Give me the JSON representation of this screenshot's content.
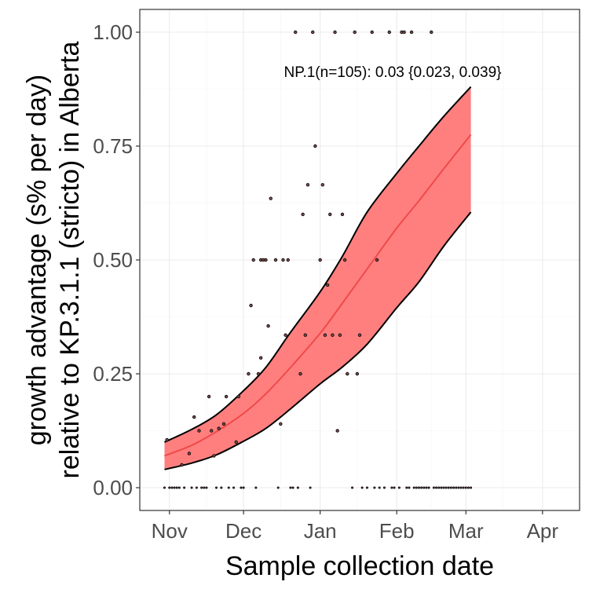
{
  "chart_data": {
    "type": "line",
    "ylabel_line1": "growth advantage (s% per day)",
    "ylabel_line2": "relative to KP.3.1.1 (stricto) in Alberta",
    "xlabel": "Sample collection date",
    "annotation": "NP.1(n=105): 0.03 {0.023, 0.039}",
    "xlim": [
      "2024-10-20",
      "2025-04-16"
    ],
    "ylim": [
      -0.05,
      1.05
    ],
    "x_ticks": [
      {
        "date": "2024-11-01",
        "label": "Nov"
      },
      {
        "date": "2024-12-01",
        "label": "Dec"
      },
      {
        "date": "2025-01-01",
        "label": "Jan"
      },
      {
        "date": "2025-02-01",
        "label": "Feb"
      },
      {
        "date": "2025-03-01",
        "label": "Mar"
      },
      {
        "date": "2025-04-01",
        "label": "Apr"
      }
    ],
    "y_ticks": [
      {
        "value": 0,
        "label": "0.00"
      },
      {
        "value": 0.25,
        "label": "0.25"
      },
      {
        "value": 0.5,
        "label": "0.50"
      },
      {
        "value": 0.75,
        "label": "0.75"
      },
      {
        "value": 1,
        "label": "1.00"
      }
    ],
    "grid": true,
    "colors": {
      "band": "#ff7f7f",
      "fit_line": "#f04a4a",
      "band_edge": "#000000",
      "points": "#000000"
    },
    "fit": {
      "x": [
        "2024-10-30",
        "2024-11-10",
        "2024-11-20",
        "2024-12-01",
        "2024-12-10",
        "2024-12-20",
        "2025-01-01",
        "2025-01-10",
        "2025-01-20",
        "2025-02-01",
        "2025-02-10",
        "2025-02-20",
        "2025-03-03"
      ],
      "y": [
        0.07,
        0.093,
        0.123,
        0.163,
        0.206,
        0.264,
        0.339,
        0.405,
        0.48,
        0.57,
        0.63,
        0.7,
        0.775
      ],
      "lower": [
        0.04,
        0.054,
        0.072,
        0.102,
        0.13,
        0.173,
        0.228,
        0.265,
        0.315,
        0.395,
        0.452,
        0.53,
        0.605
      ],
      "upper": [
        0.1,
        0.128,
        0.16,
        0.213,
        0.264,
        0.341,
        0.43,
        0.508,
        0.605,
        0.69,
        0.75,
        0.815,
        0.88
      ]
    },
    "points": [
      {
        "x": "2024-10-30",
        "y": 0.0
      },
      {
        "x": "2024-10-31",
        "y": 0.105
      },
      {
        "x": "2024-11-01",
        "y": 0.0
      },
      {
        "x": "2024-11-02",
        "y": 0.0
      },
      {
        "x": "2024-11-03",
        "y": 0.0
      },
      {
        "x": "2024-11-04",
        "y": 0.0
      },
      {
        "x": "2024-11-05",
        "y": 0.0
      },
      {
        "x": "2024-11-06",
        "y": 0.05
      },
      {
        "x": "2024-11-07",
        "y": 0.0
      },
      {
        "x": "2024-11-09",
        "y": 0.075
      },
      {
        "x": "2024-11-10",
        "y": 0.0
      },
      {
        "x": "2024-11-11",
        "y": 0.155
      },
      {
        "x": "2024-11-12",
        "y": 0.0
      },
      {
        "x": "2024-11-13",
        "y": 0.125
      },
      {
        "x": "2024-11-14",
        "y": 0.0
      },
      {
        "x": "2024-11-15",
        "y": 0.0
      },
      {
        "x": "2024-11-16",
        "y": 0.0
      },
      {
        "x": "2024-11-17",
        "y": 0.2
      },
      {
        "x": "2024-11-18",
        "y": 0.125
      },
      {
        "x": "2024-11-19",
        "y": 0.07
      },
      {
        "x": "2024-11-20",
        "y": 0.0
      },
      {
        "x": "2024-11-21",
        "y": 0.13
      },
      {
        "x": "2024-11-22",
        "y": 0.0
      },
      {
        "x": "2024-11-23",
        "y": 0.14
      },
      {
        "x": "2024-11-24",
        "y": 0.2
      },
      {
        "x": "2024-11-25",
        "y": 0.0
      },
      {
        "x": "2024-11-27",
        "y": 0.0
      },
      {
        "x": "2024-11-28",
        "y": 0.1
      },
      {
        "x": "2024-11-29",
        "y": 0.2
      },
      {
        "x": "2024-11-30",
        "y": 0.0
      },
      {
        "x": "2024-12-01",
        "y": 0.0
      },
      {
        "x": "2024-12-03",
        "y": 0.25
      },
      {
        "x": "2024-12-04",
        "y": 0.4
      },
      {
        "x": "2024-12-05",
        "y": 0.5
      },
      {
        "x": "2024-12-06",
        "y": 0.0
      },
      {
        "x": "2024-12-07",
        "y": 0.25
      },
      {
        "x": "2024-12-08",
        "y": 0.285
      },
      {
        "x": "2024-12-08",
        "y": 0.5
      },
      {
        "x": "2024-12-09",
        "y": 0.5
      },
      {
        "x": "2024-12-10",
        "y": 0.5
      },
      {
        "x": "2024-12-11",
        "y": 0.355
      },
      {
        "x": "2024-12-12",
        "y": 0.635
      },
      {
        "x": "2024-12-14",
        "y": 0.5
      },
      {
        "x": "2024-12-15",
        "y": 0.0
      },
      {
        "x": "2024-12-16",
        "y": 0.14
      },
      {
        "x": "2024-12-17",
        "y": 0.5
      },
      {
        "x": "2024-12-18",
        "y": 0.335
      },
      {
        "x": "2024-12-19",
        "y": 0.5
      },
      {
        "x": "2024-12-20",
        "y": 0.0
      },
      {
        "x": "2024-12-21",
        "y": 0.0
      },
      {
        "x": "2024-12-22",
        "y": 1.0
      },
      {
        "x": "2024-12-23",
        "y": 0.0
      },
      {
        "x": "2024-12-24",
        "y": 0.25
      },
      {
        "x": "2024-12-25",
        "y": 0.6
      },
      {
        "x": "2024-12-26",
        "y": 0.335
      },
      {
        "x": "2024-12-27",
        "y": 0.665
      },
      {
        "x": "2024-12-28",
        "y": 0.0
      },
      {
        "x": "2024-12-29",
        "y": 1.0
      },
      {
        "x": "2024-12-30",
        "y": 0.75
      },
      {
        "x": "2025-01-01",
        "y": 0.5
      },
      {
        "x": "2025-01-02",
        "y": 0.665
      },
      {
        "x": "2025-01-03",
        "y": 0.335
      },
      {
        "x": "2025-01-04",
        "y": 0.445
      },
      {
        "x": "2025-01-05",
        "y": 0.6
      },
      {
        "x": "2025-01-06",
        "y": 0.335
      },
      {
        "x": "2025-01-07",
        "y": 1.0
      },
      {
        "x": "2025-01-08",
        "y": 0.125
      },
      {
        "x": "2025-01-09",
        "y": 0.335
      },
      {
        "x": "2025-01-10",
        "y": 0.6
      },
      {
        "x": "2025-01-11",
        "y": 0.5
      },
      {
        "x": "2025-01-12",
        "y": 0.25
      },
      {
        "x": "2025-01-14",
        "y": 0.0
      },
      {
        "x": "2025-01-15",
        "y": 1.0
      },
      {
        "x": "2025-01-16",
        "y": 0.25
      },
      {
        "x": "2025-01-17",
        "y": 0.335
      },
      {
        "x": "2025-01-18",
        "y": 0.0
      },
      {
        "x": "2025-01-20",
        "y": 0.0
      },
      {
        "x": "2025-01-22",
        "y": 1.0
      },
      {
        "x": "2025-01-23",
        "y": 0.0
      },
      {
        "x": "2025-01-24",
        "y": 0.5
      },
      {
        "x": "2025-01-25",
        "y": 0.0
      },
      {
        "x": "2025-01-27",
        "y": 0.0
      },
      {
        "x": "2025-01-29",
        "y": 1.0
      },
      {
        "x": "2025-01-30",
        "y": 0.0
      },
      {
        "x": "2025-01-31",
        "y": 0.0
      },
      {
        "x": "2025-02-02",
        "y": 0.0
      },
      {
        "x": "2025-02-03",
        "y": 1.0
      },
      {
        "x": "2025-02-04",
        "y": 1.0
      },
      {
        "x": "2025-02-05",
        "y": 0.0
      },
      {
        "x": "2025-02-06",
        "y": 0.0
      },
      {
        "x": "2025-02-07",
        "y": 1.0
      },
      {
        "x": "2025-02-08",
        "y": 0.0
      },
      {
        "x": "2025-02-09",
        "y": 0.0
      },
      {
        "x": "2025-02-10",
        "y": 0.0
      },
      {
        "x": "2025-02-11",
        "y": 0.0
      },
      {
        "x": "2025-02-12",
        "y": 0.0
      },
      {
        "x": "2025-02-13",
        "y": 0.0
      },
      {
        "x": "2025-02-14",
        "y": 0.0
      },
      {
        "x": "2025-02-15",
        "y": 1.0
      },
      {
        "x": "2025-02-16",
        "y": 0.0
      },
      {
        "x": "2025-02-17",
        "y": 0.0
      },
      {
        "x": "2025-02-18",
        "y": 0.0
      },
      {
        "x": "2025-02-19",
        "y": 0.0
      },
      {
        "x": "2025-02-20",
        "y": 0.0
      },
      {
        "x": "2025-02-21",
        "y": 0.0
      },
      {
        "x": "2025-02-22",
        "y": 0.0
      },
      {
        "x": "2025-02-23",
        "y": 0.0
      },
      {
        "x": "2025-02-24",
        "y": 0.0
      },
      {
        "x": "2025-02-25",
        "y": 0.0
      },
      {
        "x": "2025-02-26",
        "y": 0.0
      },
      {
        "x": "2025-02-27",
        "y": 0.0
      },
      {
        "x": "2025-02-28",
        "y": 0.0
      },
      {
        "x": "2025-03-01",
        "y": 0.0
      },
      {
        "x": "2025-03-02",
        "y": 0.0
      },
      {
        "x": "2025-03-03",
        "y": 0.0
      }
    ]
  }
}
